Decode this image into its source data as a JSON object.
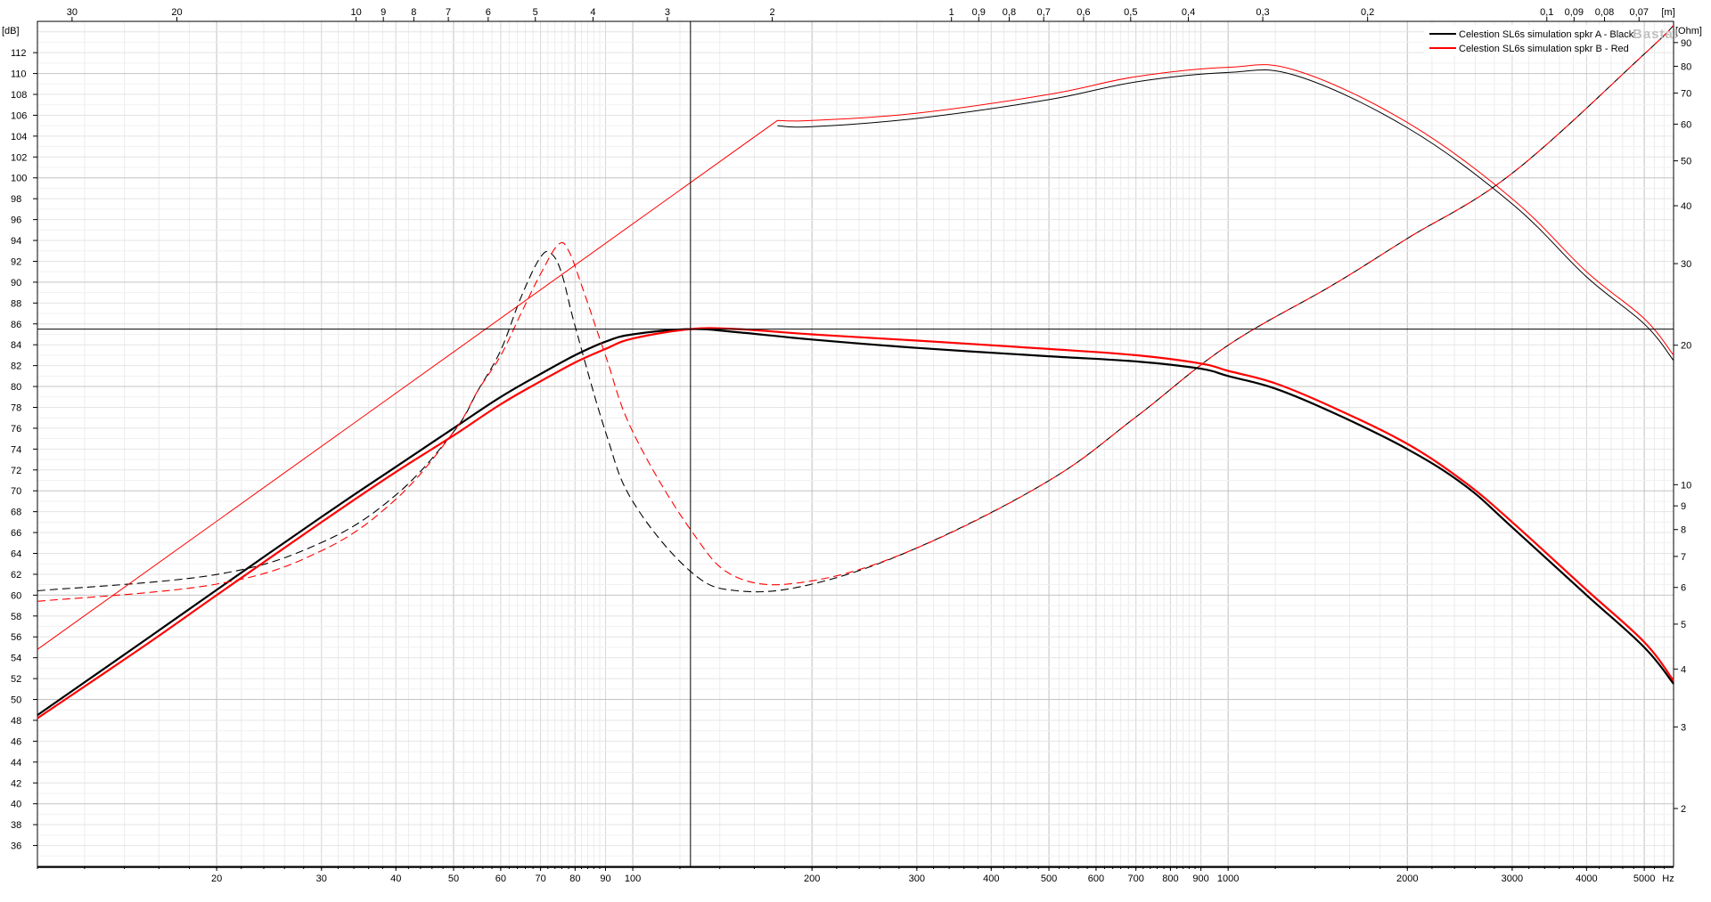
{
  "chart_data": {
    "type": "line",
    "x_axis": {
      "scale": "log",
      "unit_label": "Hz",
      "range": [
        10,
        5600
      ],
      "tick_labels": [
        "20",
        "30",
        "40",
        "50",
        "60",
        "70",
        "80",
        "90",
        "100",
        "200",
        "300",
        "400",
        "500",
        "600",
        "700",
        "800",
        "900",
        "1000",
        "2000",
        "3000",
        "4000",
        "5000"
      ]
    },
    "top_axis": {
      "unit_label": "[m]",
      "tick_labels": [
        "30",
        "20",
        "10",
        "9",
        "8",
        "7",
        "6",
        "5",
        "4",
        "3",
        "2",
        "1",
        "0,9",
        "0,8",
        "0,7",
        "0,6",
        "0,5",
        "0,4",
        "0,3",
        "0,2",
        "0,1",
        "0,09",
        "0,08",
        "0,07"
      ]
    },
    "y_axis": {
      "unit_label": "[dB]",
      "range": [
        34,
        115
      ],
      "tick_labels": [
        "36",
        "38",
        "40",
        "42",
        "44",
        "46",
        "48",
        "50",
        "52",
        "54",
        "56",
        "58",
        "60",
        "62",
        "64",
        "66",
        "68",
        "70",
        "72",
        "74",
        "76",
        "78",
        "80",
        "82",
        "84",
        "86",
        "88",
        "90",
        "92",
        "94",
        "96",
        "98",
        "100",
        "102",
        "104",
        "106",
        "108",
        "110",
        "112"
      ]
    },
    "y2_axis": {
      "unit_label": "[Ohm]",
      "scale": "log",
      "range": [
        1.5,
        100
      ],
      "tick_labels": [
        "2",
        "3",
        "4",
        "5",
        "6",
        "7",
        "8",
        "9",
        "10",
        "20",
        "30",
        "40",
        "50",
        "60",
        "70",
        "80",
        "90"
      ]
    },
    "cursor": {
      "x": 125,
      "y": 85.5
    },
    "grid": true,
    "legend_position": "top-right",
    "watermark": "Basta!",
    "series": [
      {
        "name": "Celestion SL6s simulation spkr A - Black",
        "color": "#000000",
        "spl": [
          [
            10,
            48.5
          ],
          [
            15,
            55.5
          ],
          [
            20,
            60.5
          ],
          [
            30,
            67.5
          ],
          [
            40,
            72.3
          ],
          [
            50,
            76
          ],
          [
            60,
            79
          ],
          [
            70,
            81.2
          ],
          [
            80,
            83
          ],
          [
            90,
            84.3
          ],
          [
            100,
            85
          ],
          [
            125,
            85.5
          ],
          [
            150,
            85.2
          ],
          [
            200,
            84.5
          ],
          [
            300,
            83.7
          ],
          [
            500,
            82.9
          ],
          [
            700,
            82.4
          ],
          [
            900,
            81.7
          ],
          [
            1000,
            81
          ],
          [
            1200,
            79.8
          ],
          [
            1500,
            77.5
          ],
          [
            2000,
            74
          ],
          [
            2500,
            70.5
          ],
          [
            3000,
            66.5
          ],
          [
            4000,
            60
          ],
          [
            5000,
            55
          ],
          [
            5600,
            51.5
          ]
        ],
        "impedance": [
          [
            10,
            5.9
          ],
          [
            20,
            6.4
          ],
          [
            30,
            7.5
          ],
          [
            40,
            9.5
          ],
          [
            50,
            13
          ],
          [
            55,
            16
          ],
          [
            60,
            19.5
          ],
          [
            65,
            25.5
          ],
          [
            70,
            31
          ],
          [
            73,
            31.5
          ],
          [
            76,
            28.5
          ],
          [
            80,
            22
          ],
          [
            90,
            13
          ],
          [
            100,
            9.2
          ],
          [
            125,
            6.5
          ],
          [
            150,
            5.9
          ],
          [
            200,
            6.1
          ],
          [
            300,
            7.3
          ],
          [
            500,
            10.2
          ],
          [
            700,
            14
          ],
          [
            1000,
            20
          ],
          [
            1500,
            27
          ],
          [
            2000,
            34
          ],
          [
            3000,
            47
          ],
          [
            5000,
            85
          ],
          [
            5600,
            98
          ]
        ],
        "spl_far": [
          [
            175,
            105
          ],
          [
            200,
            104.9
          ],
          [
            300,
            105.7
          ],
          [
            500,
            107.5
          ],
          [
            700,
            109.2
          ],
          [
            1000,
            110.1
          ],
          [
            1300,
            109.8
          ],
          [
            2000,
            104.8
          ],
          [
            3000,
            97.5
          ],
          [
            4000,
            90.5
          ],
          [
            5000,
            86
          ],
          [
            5600,
            82.5
          ]
        ]
      },
      {
        "name": "Celestion SL6s simulation spkr B - Red",
        "color": "#ff0000",
        "spl": [
          [
            10,
            48.2
          ],
          [
            15,
            55
          ],
          [
            20,
            60
          ],
          [
            30,
            67
          ],
          [
            40,
            71.8
          ],
          [
            50,
            75.3
          ],
          [
            60,
            78.3
          ],
          [
            70,
            80.5
          ],
          [
            80,
            82.3
          ],
          [
            90,
            83.6
          ],
          [
            100,
            84.6
          ],
          [
            125,
            85.5
          ],
          [
            150,
            85.5
          ],
          [
            200,
            85
          ],
          [
            300,
            84.4
          ],
          [
            500,
            83.6
          ],
          [
            700,
            83
          ],
          [
            900,
            82.2
          ],
          [
            1000,
            81.5
          ],
          [
            1200,
            80.3
          ],
          [
            1500,
            78
          ],
          [
            2000,
            74.5
          ],
          [
            2500,
            70.8
          ],
          [
            3000,
            67
          ],
          [
            4000,
            60.5
          ],
          [
            5000,
            55.5
          ],
          [
            5600,
            51.8
          ]
        ],
        "impedance": [
          [
            10,
            5.6
          ],
          [
            20,
            6.1
          ],
          [
            30,
            7.2
          ],
          [
            40,
            9.3
          ],
          [
            50,
            13
          ],
          [
            55,
            16
          ],
          [
            60,
            19
          ],
          [
            65,
            23.5
          ],
          [
            70,
            28.5
          ],
          [
            75,
            33
          ],
          [
            78,
            32
          ],
          [
            82,
            27
          ],
          [
            90,
            19
          ],
          [
            100,
            13
          ],
          [
            125,
            8
          ],
          [
            150,
            6.3
          ],
          [
            200,
            6.2
          ],
          [
            300,
            7.3
          ],
          [
            500,
            10.2
          ],
          [
            700,
            14
          ],
          [
            1000,
            20
          ],
          [
            1500,
            27
          ],
          [
            2000,
            34
          ],
          [
            3000,
            47
          ],
          [
            5000,
            85
          ],
          [
            5600,
            98
          ]
        ],
        "spl_far": [
          [
            10,
            54.8
          ],
          [
            175,
            105.5
          ],
          [
            200,
            105.5
          ],
          [
            300,
            106.2
          ],
          [
            500,
            108
          ],
          [
            700,
            109.7
          ],
          [
            1000,
            110.6
          ],
          [
            1300,
            110.3
          ],
          [
            2000,
            105.3
          ],
          [
            3000,
            98
          ],
          [
            4000,
            91
          ],
          [
            5000,
            86.5
          ],
          [
            5600,
            83
          ]
        ]
      }
    ]
  }
}
